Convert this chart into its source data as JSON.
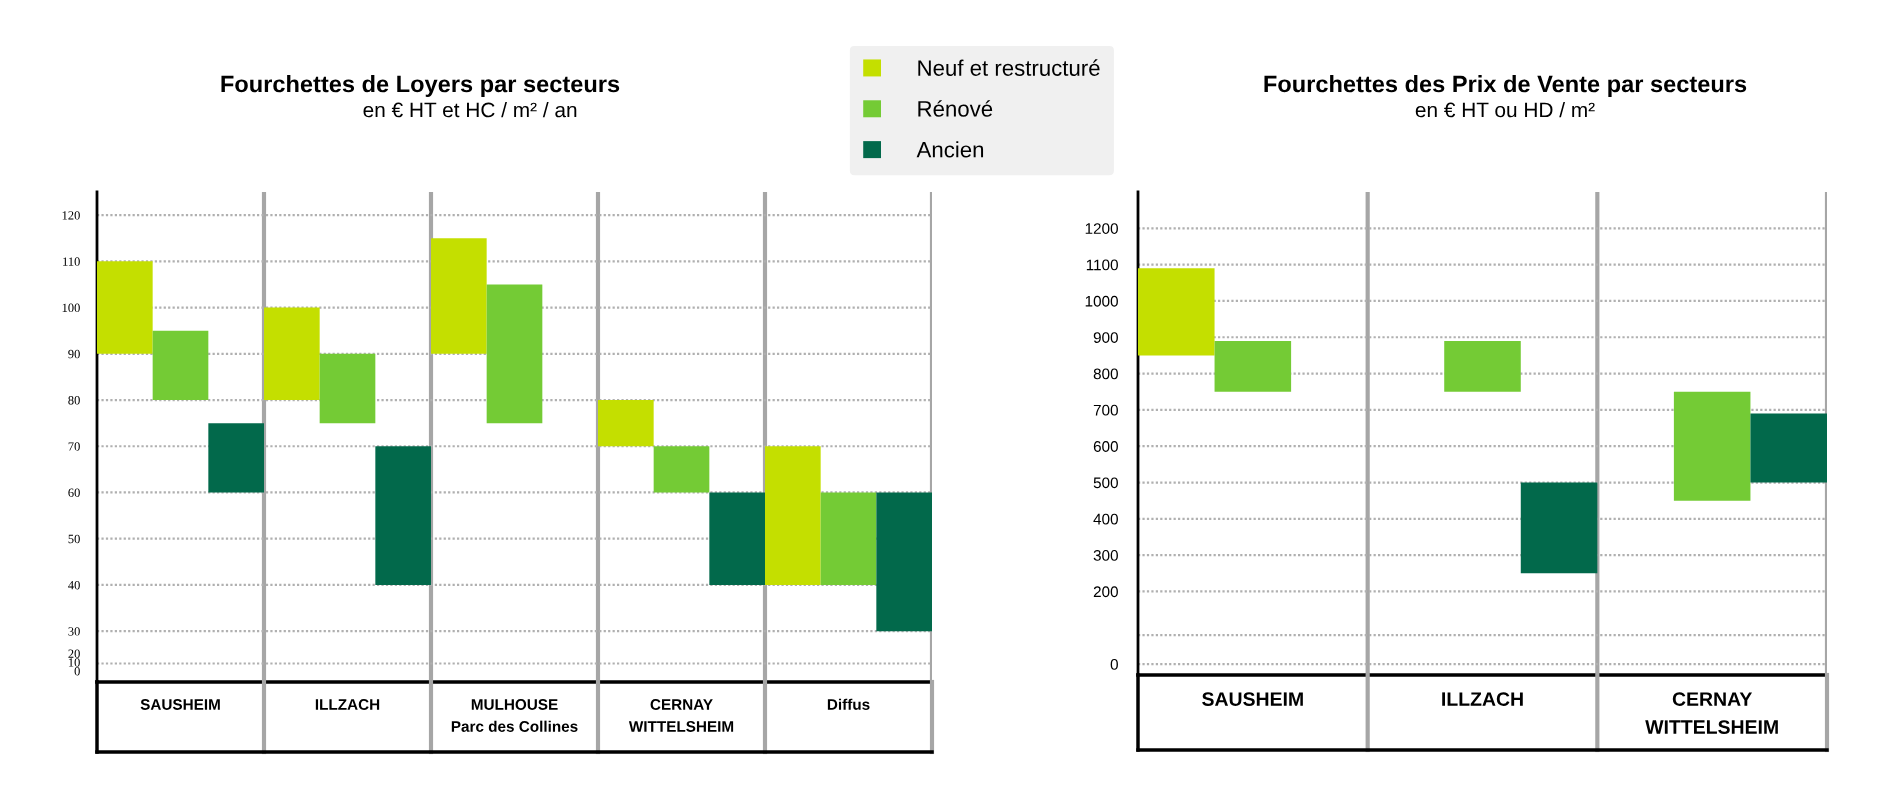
{
  "chart_data": [
    {
      "type": "bar",
      "title": "Fourchettes de Loyers par secteurs",
      "subtitle": "en € HT et HC / m² / an",
      "categories": [
        "SAUSHEIM",
        "ILLZACH",
        "MULHOUSE\nParc des Collines",
        "CERNAY\nWITTELSHEIM",
        "Diffus"
      ],
      "series": [
        {
          "name": "Neuf et restructuré",
          "color": "#c4df00",
          "base": [
            90,
            80,
            90,
            70,
            40
          ],
          "values": [
            20,
            20,
            25,
            10,
            30
          ]
        },
        {
          "name": "Rénové",
          "color": "#74cb35",
          "base": [
            80,
            75,
            75,
            60,
            40
          ],
          "values": [
            15,
            15,
            30,
            10,
            20
          ]
        },
        {
          "name": "Ancien",
          "color": "#02694b",
          "base": [
            60,
            40,
            null,
            40,
            30
          ],
          "values": [
            15,
            30,
            null,
            20,
            30
          ]
        }
      ],
      "ylim": [
        19,
        125
      ],
      "yticks": [
        {
          "value": 23,
          "label": "20\n10\n0"
        },
        30,
        40,
        50,
        60,
        70,
        80,
        90,
        100,
        110,
        120
      ],
      "grid": true,
      "legend": "top right"
    },
    {
      "type": "bar",
      "title": "Fourchettes des Prix de Vente par secteurs",
      "subtitle": "en € HT ou HD / m²",
      "categories": [
        "SAUSHEIM",
        "ILLZACH",
        "CERNAY\nWITTELSHEIM"
      ],
      "series": [
        {
          "color": "#c4df00",
          "base": [
            850,
            null,
            null
          ],
          "values": [
            240,
            null,
            null
          ]
        },
        {
          "color": "#74cb35",
          "base": [
            750,
            750,
            450
          ],
          "values": [
            140,
            140,
            300
          ]
        },
        {
          "color": "#02694b",
          "base": [
            null,
            250,
            500
          ],
          "values": [
            null,
            250,
            190
          ]
        }
      ],
      "ylim": [
        -30,
        1300
      ],
      "yticks": [
        0,
        {
          "value": 80,
          "label": null
        },
        200,
        300,
        400,
        500,
        600,
        700,
        800,
        900,
        1000,
        1100,
        1200
      ],
      "grid": true
    }
  ]
}
